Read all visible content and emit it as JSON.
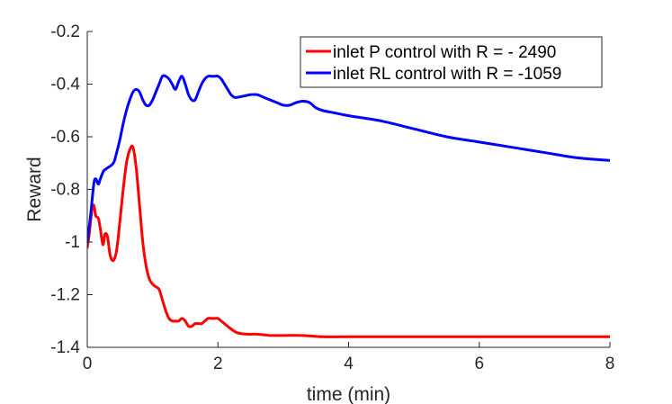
{
  "chart_data": {
    "type": "line",
    "title": "",
    "xlabel": "time (min)",
    "ylabel": "Reward",
    "xlim": [
      0,
      8
    ],
    "ylim": [
      -1.4,
      -0.2
    ],
    "xticks": [
      0,
      2,
      4,
      6,
      8
    ],
    "yticks": [
      -0.2,
      -0.4,
      -0.6,
      -0.8,
      -1,
      -1.2,
      -1.4
    ],
    "xtick_labels": [
      "0",
      "2",
      "4",
      "6",
      "8"
    ],
    "ytick_labels": [
      "-0.2",
      "-0.4",
      "-0.6",
      "-0.8",
      "-1",
      "-1.2",
      "-1.4"
    ],
    "grid": false,
    "legend_position": "top-right",
    "series": [
      {
        "name": "inlet P control with R = - 2490",
        "color": "#ff0000",
        "x": [
          0,
          0.03,
          0.07,
          0.1,
          0.13,
          0.17,
          0.2,
          0.24,
          0.27,
          0.31,
          0.35,
          0.4,
          0.45,
          0.5,
          0.55,
          0.6,
          0.65,
          0.7,
          0.75,
          0.8,
          0.85,
          0.9,
          0.95,
          1.0,
          1.05,
          1.1,
          1.15,
          1.2,
          1.25,
          1.3,
          1.35,
          1.4,
          1.45,
          1.5,
          1.55,
          1.6,
          1.65,
          1.7,
          1.75,
          1.8,
          1.85,
          1.9,
          1.95,
          2.0,
          2.05,
          2.1,
          2.2,
          2.3,
          2.45,
          2.6,
          2.8,
          3.0,
          3.3,
          3.6,
          4.0,
          5.0,
          6.0,
          7.0,
          8.0
        ],
        "y": [
          -1.02,
          -0.97,
          -0.88,
          -0.86,
          -0.9,
          -0.91,
          -0.95,
          -1.01,
          -0.97,
          -0.98,
          -1.05,
          -1.07,
          -1.03,
          -0.92,
          -0.8,
          -0.7,
          -0.65,
          -0.64,
          -0.72,
          -0.86,
          -1.0,
          -1.09,
          -1.14,
          -1.16,
          -1.17,
          -1.18,
          -1.22,
          -1.26,
          -1.29,
          -1.3,
          -1.3,
          -1.3,
          -1.29,
          -1.3,
          -1.32,
          -1.32,
          -1.31,
          -1.31,
          -1.31,
          -1.3,
          -1.29,
          -1.29,
          -1.29,
          -1.29,
          -1.3,
          -1.31,
          -1.33,
          -1.345,
          -1.35,
          -1.35,
          -1.355,
          -1.355,
          -1.355,
          -1.36,
          -1.36,
          -1.36,
          -1.36,
          -1.36,
          -1.36
        ]
      },
      {
        "name": "inlet RL control with R = -1059",
        "color": "#0000ff",
        "x": [
          0,
          0.05,
          0.1,
          0.13,
          0.17,
          0.2,
          0.25,
          0.3,
          0.4,
          0.45,
          0.5,
          0.55,
          0.6,
          0.65,
          0.7,
          0.75,
          0.8,
          0.85,
          0.9,
          0.95,
          1.0,
          1.05,
          1.1,
          1.15,
          1.2,
          1.25,
          1.3,
          1.35,
          1.4,
          1.45,
          1.5,
          1.55,
          1.6,
          1.65,
          1.7,
          1.75,
          1.8,
          1.85,
          1.9,
          1.95,
          2.0,
          2.05,
          2.1,
          2.15,
          2.2,
          2.25,
          2.3,
          2.4,
          2.5,
          2.6,
          2.7,
          2.8,
          2.9,
          3.0,
          3.1,
          3.2,
          3.3,
          3.4,
          3.5,
          3.6,
          3.8,
          4.0,
          4.5,
          5.0,
          5.5,
          6.0,
          6.5,
          7.0,
          7.5,
          8.0
        ],
        "y": [
          -1.0,
          -0.9,
          -0.78,
          -0.76,
          -0.78,
          -0.76,
          -0.73,
          -0.72,
          -0.7,
          -0.66,
          -0.61,
          -0.55,
          -0.5,
          -0.46,
          -0.43,
          -0.42,
          -0.43,
          -0.46,
          -0.48,
          -0.48,
          -0.46,
          -0.43,
          -0.4,
          -0.37,
          -0.37,
          -0.38,
          -0.4,
          -0.42,
          -0.39,
          -0.37,
          -0.4,
          -0.44,
          -0.46,
          -0.46,
          -0.43,
          -0.4,
          -0.38,
          -0.37,
          -0.37,
          -0.37,
          -0.37,
          -0.38,
          -0.4,
          -0.42,
          -0.44,
          -0.45,
          -0.45,
          -0.445,
          -0.44,
          -0.44,
          -0.45,
          -0.46,
          -0.47,
          -0.48,
          -0.48,
          -0.47,
          -0.465,
          -0.47,
          -0.49,
          -0.5,
          -0.51,
          -0.52,
          -0.54,
          -0.57,
          -0.6,
          -0.62,
          -0.64,
          -0.66,
          -0.68,
          -0.69
        ]
      }
    ]
  }
}
